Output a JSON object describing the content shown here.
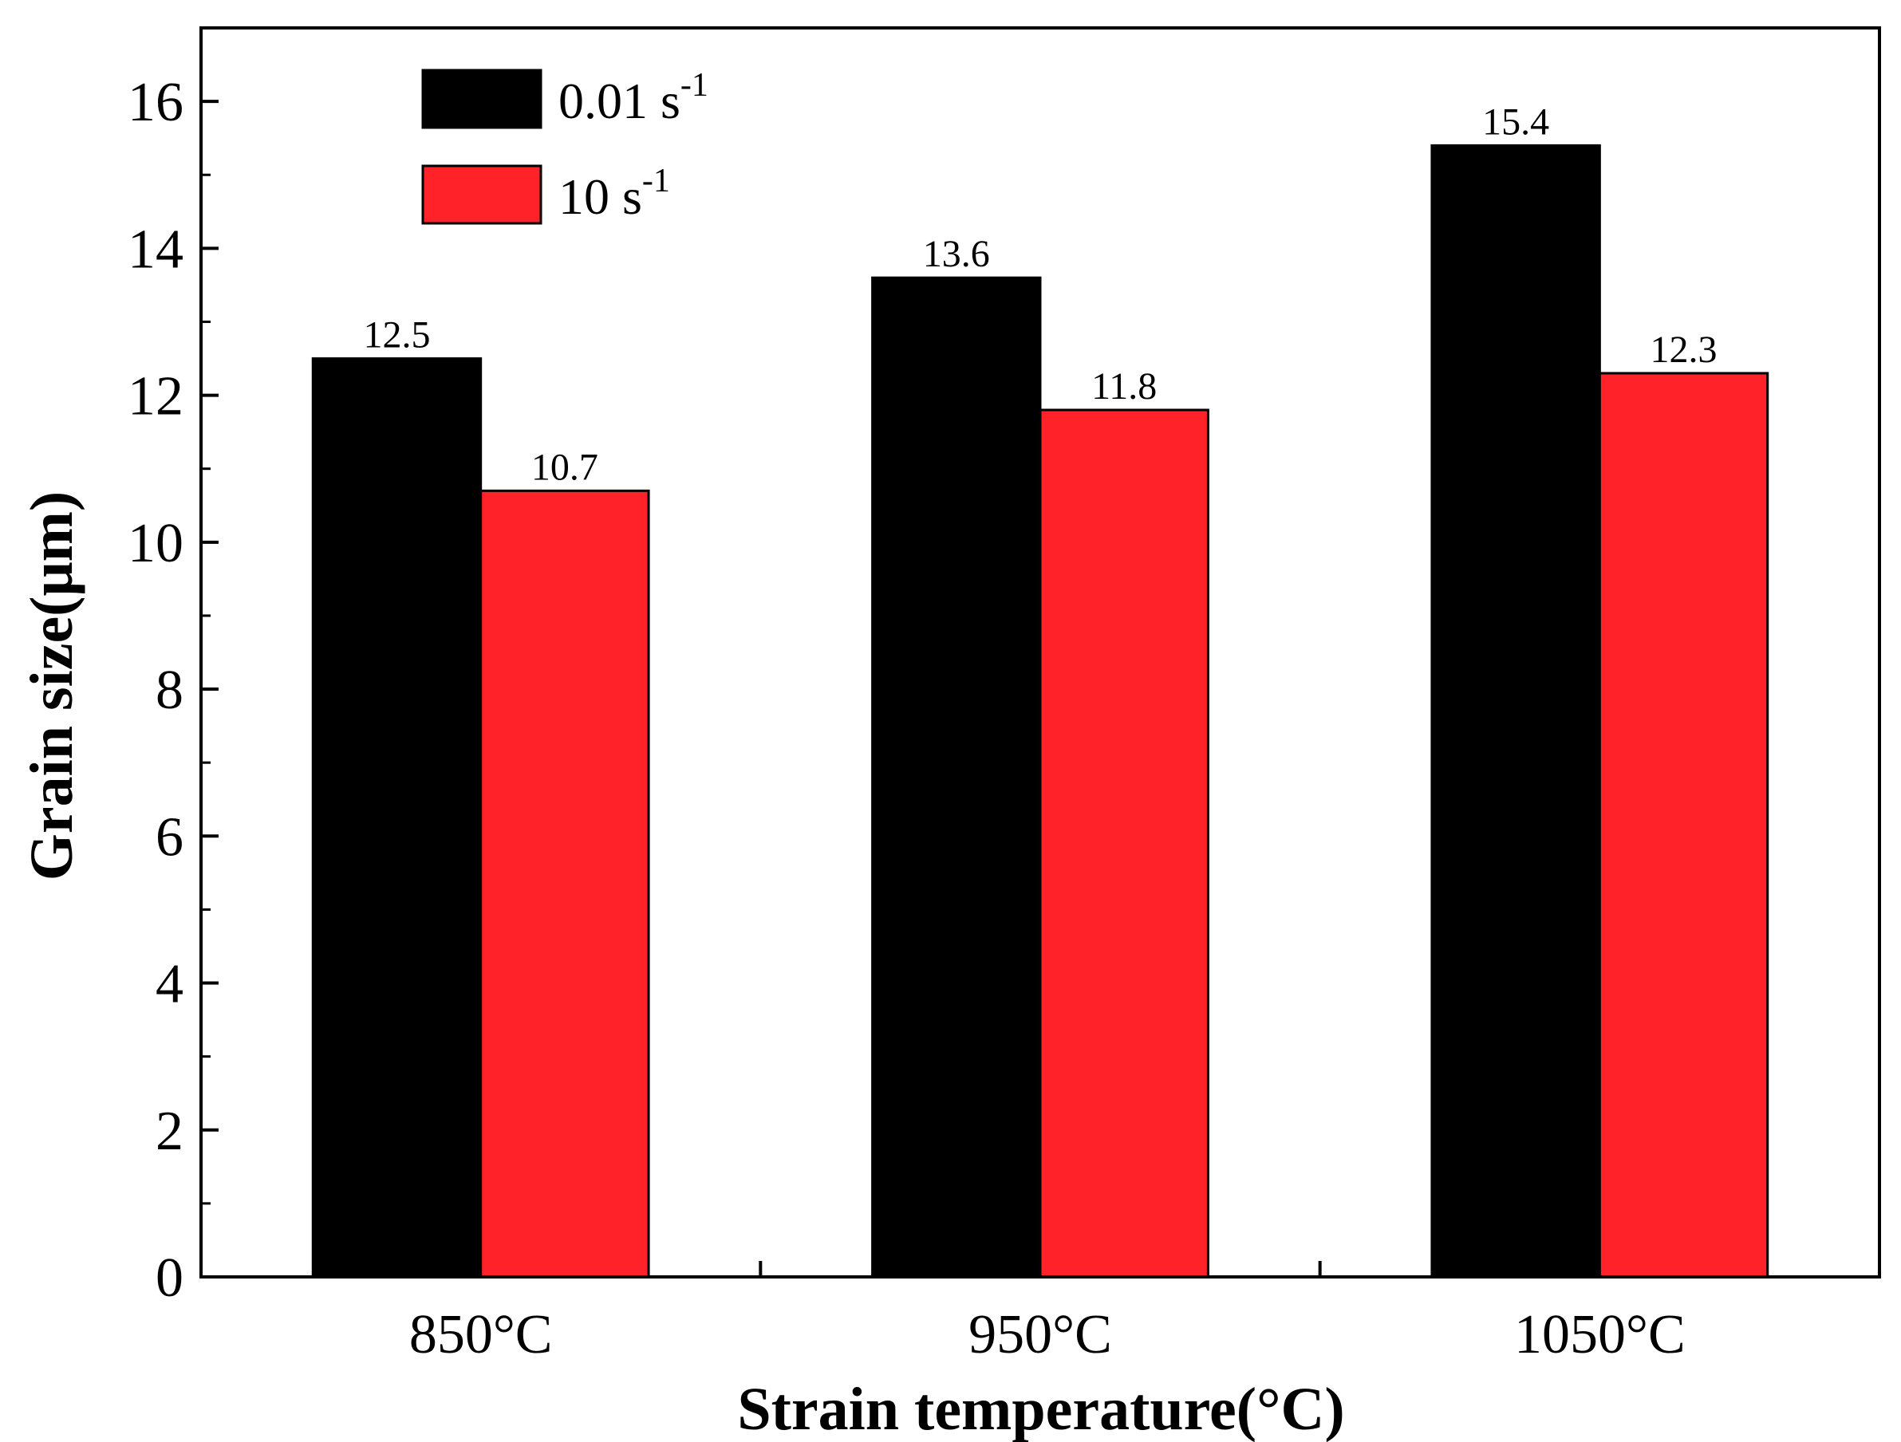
{
  "chart_data": {
    "type": "bar",
    "categories": [
      "850°C",
      "950°C",
      "1050°C"
    ],
    "series": [
      {
        "name": "0.01 s-1",
        "name_base": "0.01 s",
        "name_sup": "-1",
        "color": "#000000",
        "values": [
          12.5,
          13.6,
          15.4
        ],
        "labels": [
          "12.5",
          "13.6",
          "15.4"
        ]
      },
      {
        "name": "10 s-1",
        "name_base": "10 s",
        "name_sup": "-1",
        "color": "#ff2228",
        "values": [
          10.7,
          11.8,
          12.3
        ],
        "labels": [
          "10.7",
          "11.8",
          "12.3"
        ]
      }
    ],
    "xlabel": "Strain temperature(°C)",
    "ylabel": "Grain size(μm)",
    "ylim": [
      0,
      17
    ],
    "yticks": [
      0,
      2,
      4,
      6,
      8,
      10,
      12,
      14,
      16
    ],
    "ytick_labels": [
      "0",
      "2",
      "4",
      "6",
      "8",
      "10",
      "12",
      "14",
      "16"
    ],
    "legend_position": "top-left",
    "grid": false
  }
}
